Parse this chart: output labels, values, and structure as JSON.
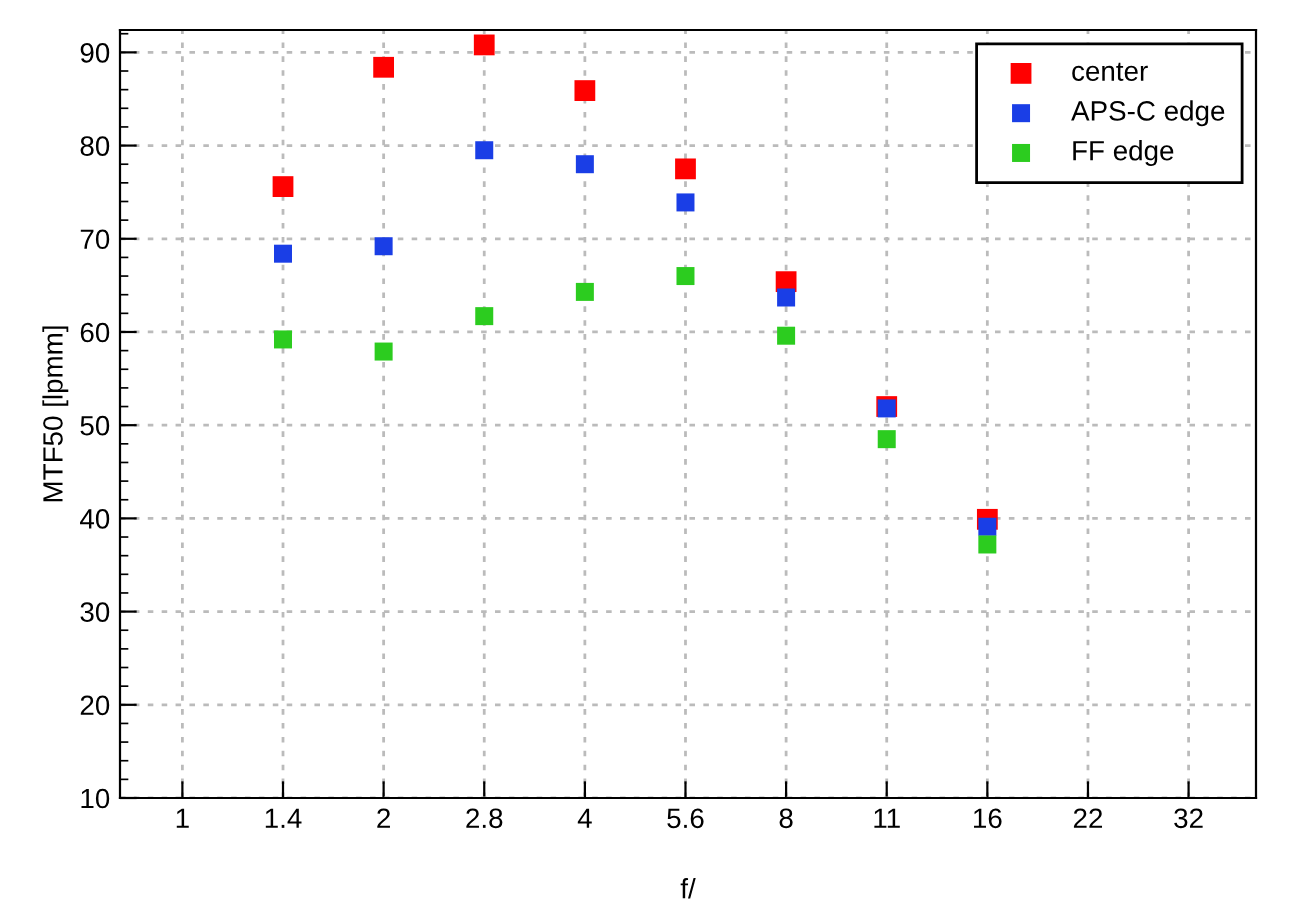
{
  "chart_data": {
    "type": "scatter",
    "xlabel": "f/",
    "ylabel": "MTF50 [lpmm]",
    "categories": [
      "1",
      "1.4",
      "2",
      "2.8",
      "4",
      "5.6",
      "8",
      "11",
      "16",
      "22",
      "32"
    ],
    "series": [
      {
        "name": "center",
        "color": "#ff0000",
        "values": [
          null,
          75.6,
          88.4,
          90.8,
          85.9,
          77.5,
          65.4,
          52.0,
          39.9,
          null,
          null
        ]
      },
      {
        "name": "APS-C edge",
        "color": "#1a3ee6",
        "values": [
          null,
          68.4,
          69.2,
          79.5,
          78.0,
          73.9,
          63.7,
          51.8,
          39.1,
          null,
          null
        ]
      },
      {
        "name": "FF edge",
        "color": "#2ccc1f",
        "values": [
          null,
          59.2,
          57.9,
          61.7,
          64.3,
          66.0,
          59.6,
          48.5,
          37.2,
          null,
          null
        ]
      }
    ],
    "ylim": [
      10,
      92.4
    ],
    "yticks": [
      10,
      20,
      30,
      40,
      50,
      60,
      70,
      80,
      90
    ],
    "grid": true,
    "legend": "top right",
    "marker": "square"
  }
}
